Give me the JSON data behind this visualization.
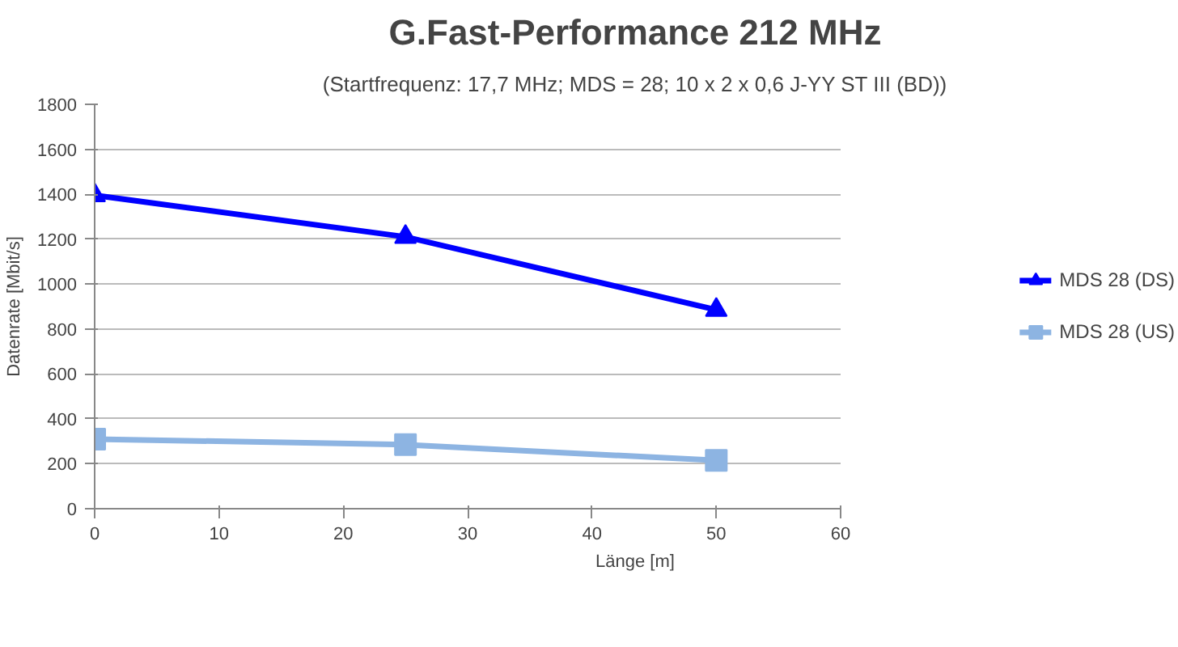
{
  "chart_data": {
    "type": "line",
    "title": "G.Fast-Performance 212 MHz",
    "subtitle": "(Startfrequenz: 17,7 MHz; MDS = 28; 10 x 2 x 0,6 J-YY ST III (BD))",
    "xlabel": "Länge [m]",
    "ylabel": "Datenrate [Mbit/s]",
    "x": [
      0,
      25,
      50
    ],
    "series": [
      {
        "name": "MDS 28 (DS)",
        "color": "#0000ff",
        "marker": "triangle",
        "values": [
          1395,
          1210,
          885
        ]
      },
      {
        "name": "MDS 28 (US)",
        "color": "#8db4e2",
        "marker": "square",
        "values": [
          310,
          285,
          215
        ]
      }
    ],
    "xlim": [
      0,
      60
    ],
    "xticks": [
      0,
      10,
      20,
      30,
      40,
      50,
      60
    ],
    "ylim": [
      0,
      1800
    ],
    "yticks": [
      0,
      200,
      400,
      600,
      800,
      1000,
      1200,
      1400,
      1600,
      1800
    ],
    "grid": "y",
    "legend": "right",
    "line_style": "solid"
  }
}
